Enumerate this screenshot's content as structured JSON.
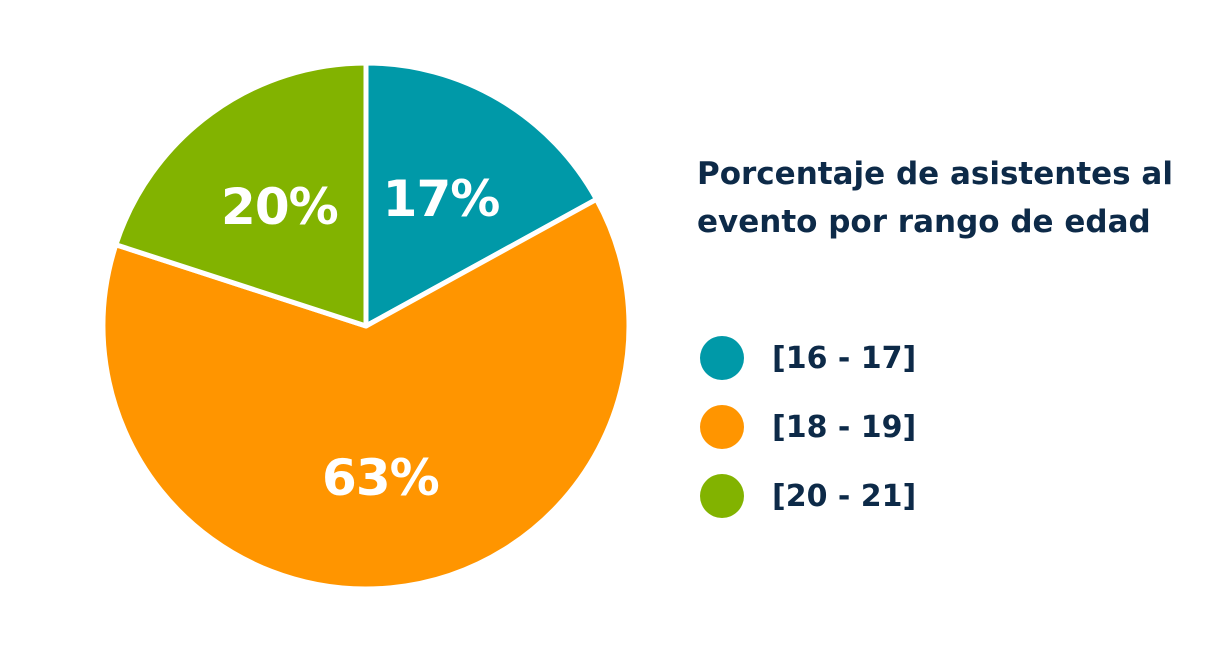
{
  "chart_data": {
    "type": "pie",
    "title": "Porcentaje de asistentes al evento por rango de edad",
    "categories": [
      "[16 - 17]",
      "[18 - 19]",
      "[20 - 21]"
    ],
    "values": [
      17,
      63,
      20
    ],
    "value_labels": [
      "17%",
      "63%",
      "20%"
    ],
    "colors": [
      "#0099a8",
      "#ff9500",
      "#82b300"
    ],
    "legend_position": "right"
  },
  "colors": {
    "text": "#0d2a48",
    "slice_border": "#ffffff"
  }
}
